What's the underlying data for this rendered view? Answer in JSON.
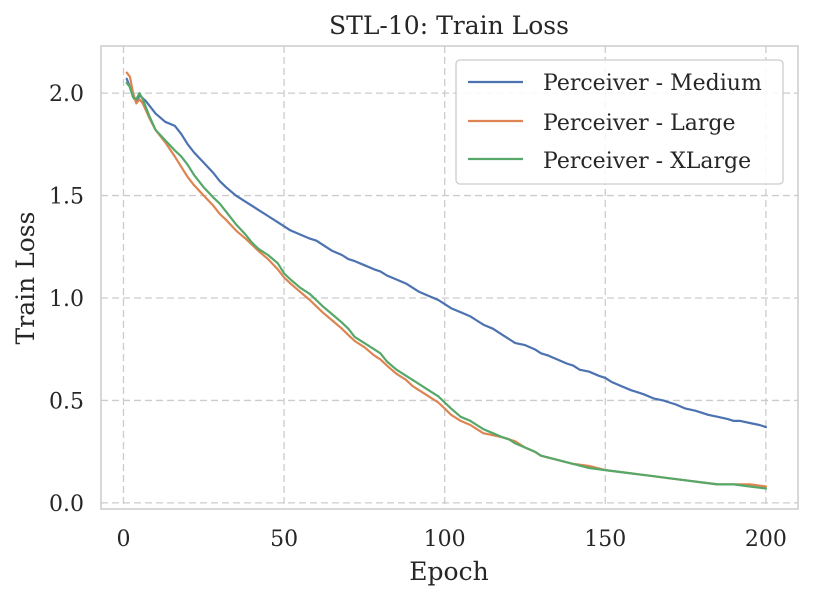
{
  "chart_data": {
    "type": "line",
    "title": "STL-10: Train Loss",
    "xlabel": "Epoch",
    "ylabel": "Train Loss",
    "xlim": [
      -7,
      210
    ],
    "ylim": [
      -0.03,
      2.23
    ],
    "xticks": [
      0,
      50,
      100,
      150,
      200
    ],
    "yticks": [
      0.0,
      0.5,
      1.0,
      1.5,
      2.0
    ],
    "xtick_labels": [
      "0",
      "50",
      "100",
      "150",
      "200"
    ],
    "ytick_labels": [
      "0.0",
      "0.5",
      "1.0",
      "1.5",
      "2.0"
    ],
    "grid": true,
    "legend_position": "upper-right",
    "series": [
      {
        "name": "Perceiver - Medium",
        "color": "#4c72b0",
        "x": [
          1,
          2,
          3,
          4,
          5,
          7,
          10,
          13,
          16,
          18,
          20,
          22,
          25,
          28,
          30,
          32,
          35,
          38,
          40,
          42,
          45,
          48,
          50,
          52,
          55,
          58,
          60,
          62,
          65,
          68,
          70,
          72,
          75,
          78,
          80,
          82,
          85,
          88,
          90,
          92,
          95,
          98,
          100,
          102,
          105,
          108,
          110,
          112,
          115,
          118,
          120,
          122,
          125,
          128,
          130,
          132,
          135,
          138,
          140,
          142,
          145,
          148,
          150,
          152,
          155,
          158,
          160,
          162,
          165,
          168,
          170,
          172,
          175,
          178,
          180,
          182,
          185,
          188,
          190,
          192,
          195,
          198,
          200
        ],
        "values": [
          2.07,
          2.03,
          1.98,
          1.96,
          1.99,
          1.96,
          1.9,
          1.86,
          1.84,
          1.8,
          1.75,
          1.71,
          1.66,
          1.61,
          1.57,
          1.54,
          1.5,
          1.47,
          1.45,
          1.43,
          1.4,
          1.37,
          1.35,
          1.33,
          1.31,
          1.29,
          1.28,
          1.26,
          1.23,
          1.21,
          1.19,
          1.18,
          1.16,
          1.14,
          1.13,
          1.11,
          1.09,
          1.07,
          1.05,
          1.03,
          1.01,
          0.99,
          0.97,
          0.95,
          0.93,
          0.91,
          0.89,
          0.87,
          0.85,
          0.82,
          0.8,
          0.78,
          0.77,
          0.75,
          0.73,
          0.72,
          0.7,
          0.68,
          0.67,
          0.65,
          0.64,
          0.62,
          0.61,
          0.59,
          0.57,
          0.55,
          0.54,
          0.53,
          0.51,
          0.5,
          0.49,
          0.48,
          0.46,
          0.45,
          0.44,
          0.43,
          0.42,
          0.41,
          0.4,
          0.4,
          0.39,
          0.38,
          0.37
        ]
      },
      {
        "name": "Perceiver - Large",
        "color": "#dd8452",
        "x": [
          1,
          2,
          3,
          4,
          5,
          6,
          8,
          10,
          13,
          16,
          18,
          20,
          22,
          25,
          28,
          30,
          32,
          35,
          38,
          40,
          42,
          45,
          48,
          50,
          52,
          55,
          58,
          60,
          62,
          65,
          68,
          70,
          72,
          75,
          78,
          80,
          82,
          85,
          88,
          90,
          92,
          95,
          98,
          100,
          102,
          105,
          108,
          110,
          112,
          115,
          118,
          120,
          122,
          125,
          128,
          130,
          135,
          140,
          145,
          150,
          155,
          160,
          165,
          170,
          175,
          180,
          185,
          190,
          195,
          200
        ],
        "values": [
          2.1,
          2.08,
          2.0,
          1.95,
          1.97,
          1.95,
          1.88,
          1.82,
          1.76,
          1.69,
          1.64,
          1.59,
          1.55,
          1.5,
          1.45,
          1.41,
          1.38,
          1.33,
          1.29,
          1.26,
          1.23,
          1.19,
          1.14,
          1.1,
          1.07,
          1.03,
          0.99,
          0.96,
          0.93,
          0.89,
          0.85,
          0.82,
          0.79,
          0.76,
          0.72,
          0.7,
          0.67,
          0.63,
          0.6,
          0.57,
          0.55,
          0.52,
          0.49,
          0.46,
          0.43,
          0.4,
          0.38,
          0.36,
          0.34,
          0.33,
          0.32,
          0.31,
          0.3,
          0.27,
          0.25,
          0.23,
          0.21,
          0.19,
          0.18,
          0.16,
          0.15,
          0.14,
          0.13,
          0.12,
          0.11,
          0.1,
          0.09,
          0.09,
          0.09,
          0.08
        ]
      },
      {
        "name": "Perceiver - XLarge",
        "color": "#55a868",
        "x": [
          1,
          2,
          3,
          4,
          5,
          6,
          8,
          10,
          13,
          16,
          18,
          20,
          22,
          25,
          28,
          30,
          32,
          35,
          38,
          40,
          42,
          45,
          48,
          50,
          52,
          55,
          58,
          60,
          62,
          65,
          68,
          70,
          72,
          75,
          78,
          80,
          82,
          85,
          88,
          90,
          92,
          95,
          98,
          100,
          102,
          105,
          108,
          110,
          112,
          115,
          118,
          120,
          122,
          125,
          128,
          130,
          135,
          140,
          145,
          150,
          155,
          160,
          165,
          170,
          175,
          180,
          185,
          190,
          195,
          200
        ],
        "values": [
          2.05,
          2.03,
          1.98,
          1.97,
          2.0,
          1.97,
          1.89,
          1.82,
          1.77,
          1.72,
          1.69,
          1.65,
          1.6,
          1.54,
          1.49,
          1.46,
          1.42,
          1.36,
          1.31,
          1.27,
          1.24,
          1.21,
          1.17,
          1.12,
          1.09,
          1.05,
          1.02,
          0.99,
          0.96,
          0.92,
          0.88,
          0.85,
          0.81,
          0.78,
          0.75,
          0.73,
          0.69,
          0.65,
          0.62,
          0.6,
          0.58,
          0.55,
          0.52,
          0.49,
          0.46,
          0.42,
          0.4,
          0.38,
          0.36,
          0.34,
          0.32,
          0.31,
          0.29,
          0.27,
          0.25,
          0.23,
          0.21,
          0.19,
          0.17,
          0.16,
          0.15,
          0.14,
          0.13,
          0.12,
          0.11,
          0.1,
          0.09,
          0.09,
          0.08,
          0.07
        ]
      }
    ]
  }
}
